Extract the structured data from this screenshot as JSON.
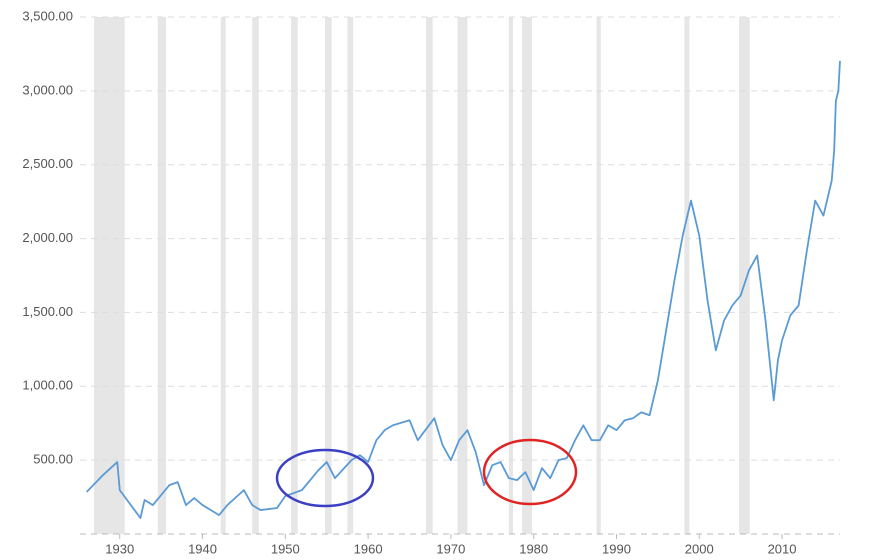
{
  "chart_data": {
    "type": "line",
    "x": [
      1926,
      1928,
      1929.7,
      1930,
      1932.5,
      1933,
      1934,
      1936,
      1937,
      1938,
      1939,
      1940,
      1942,
      1943,
      1945,
      1946,
      1947,
      1949,
      1950,
      1952,
      1954,
      1955,
      1956,
      1958,
      1959,
      1960,
      1961,
      1962,
      1963,
      1965,
      1966,
      1968,
      1969,
      1970,
      1971,
      1972,
      1973,
      1974,
      1975,
      1976,
      1977,
      1978,
      1979,
      1980,
      1981,
      1982,
      1983,
      1984,
      1985,
      1986,
      1987,
      1988,
      1989,
      1990,
      1991,
      1992,
      1993,
      1994,
      1995,
      1996,
      1997,
      1998,
      1999,
      2000,
      2001,
      2002,
      2003,
      2004,
      2005,
      2006,
      2007,
      2008,
      2009,
      2009.5,
      2010,
      2011,
      2012,
      2013,
      2014,
      2015,
      2016,
      2016.3,
      2016.5,
      2016.8,
      2017
    ],
    "series": [
      {
        "color": "#5b9bd5",
        "values": [
          284,
          400,
          487,
          297,
          108,
          230,
          196,
          331,
          351,
          196,
          243,
          196,
          128,
          196,
          297,
          196,
          162,
          176,
          257,
          297,
          432,
          487,
          378,
          500,
          534,
          487,
          635,
          703,
          736,
          770,
          635,
          784,
          601,
          500,
          635,
          703,
          554,
          331,
          466,
          487,
          378,
          365,
          419,
          297,
          446,
          378,
          500,
          514,
          635,
          736,
          635,
          635,
          736,
          703,
          770,
          784,
          824,
          804,
          1040,
          1378,
          1716,
          2020,
          2257,
          2020,
          1581,
          1243,
          1446,
          1547,
          1615,
          1784,
          1885,
          1446,
          905,
          1176,
          1311,
          1480,
          1547,
          1919,
          2257,
          2156,
          2392,
          2600,
          2933,
          3000,
          3203
        ]
      }
    ],
    "xlim": [
      1925.2,
      2017.0
    ],
    "xticks": [
      1930,
      1940,
      1950,
      1960,
      1970,
      1980,
      1990,
      2000,
      2010
    ],
    "ylim": [
      0,
      3500
    ],
    "yticks": [
      {
        "value": 500,
        "label": "500.00"
      },
      {
        "value": 1000,
        "label": "1,000.00"
      },
      {
        "value": 1500,
        "label": "1,500.00"
      },
      {
        "value": 2000,
        "label": "2,000.00"
      },
      {
        "value": 2500,
        "label": "2,500.00"
      },
      {
        "value": 3000,
        "label": "3,000.00"
      },
      {
        "value": 3500,
        "label": "3,500.00"
      }
    ],
    "grid": true,
    "shaded_periods": [
      [
        1926.9,
        1930.6
      ],
      [
        1934.6,
        1935.6
      ],
      [
        1942.2,
        1942.8
      ],
      [
        1946.0,
        1946.8
      ],
      [
        1950.7,
        1951.5
      ],
      [
        1954.8,
        1955.6
      ],
      [
        1957.5,
        1958.2
      ],
      [
        1967.0,
        1967.8
      ],
      [
        1970.8,
        1972.0
      ],
      [
        1977.0,
        1977.5
      ],
      [
        1978.6,
        1979.8
      ],
      [
        1987.6,
        1988.1
      ],
      [
        1998.2,
        1998.8
      ],
      [
        2004.8,
        2006.1
      ]
    ],
    "shade_color": "#e6e6e6"
  }
}
